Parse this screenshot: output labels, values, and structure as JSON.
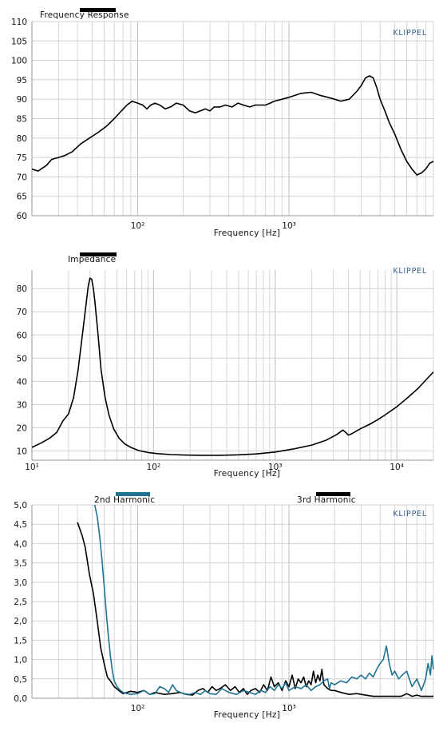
{
  "brand": "KLIPPEL",
  "brand_color": "#2f5f8f",
  "chart_data": [
    {
      "type": "line",
      "title": "Frequency Response",
      "xlabel": "Frequency  [Hz]",
      "x_scale": "log",
      "xlim": [
        20,
        9000
      ],
      "ylim": [
        60,
        110
      ],
      "y_ticks": [
        60,
        65,
        70,
        75,
        80,
        85,
        90,
        95,
        100,
        105,
        110
      ],
      "x_tick_labels": [
        {
          "value": 100,
          "label": "10²"
        },
        {
          "value": 1000,
          "label": "10³"
        }
      ],
      "grid": true,
      "legend": [
        {
          "name": "Frequency Response",
          "color": "#000000"
        }
      ],
      "series": [
        {
          "name": "Frequency Response",
          "color": "#000000",
          "x": [
            20,
            22,
            25,
            27,
            30,
            33,
            37,
            42,
            48,
            55,
            62,
            70,
            78,
            85,
            92,
            100,
            108,
            115,
            122,
            130,
            140,
            152,
            165,
            180,
            200,
            220,
            240,
            260,
            280,
            300,
            320,
            350,
            380,
            420,
            460,
            500,
            550,
            600,
            650,
            700,
            750,
            800,
            900,
            1000,
            1100,
            1200,
            1400,
            1600,
            1800,
            2000,
            2200,
            2500,
            2800,
            3000,
            3200,
            3400,
            3600,
            3800,
            4000,
            4300,
            4600,
            5000,
            5500,
            6000,
            6500,
            7000,
            7500,
            8000,
            8500,
            9000
          ],
          "y": [
            72,
            71.5,
            73,
            74.5,
            75,
            75.5,
            76.5,
            78.5,
            80,
            81.5,
            83,
            85,
            87,
            88.5,
            89.5,
            89,
            88.5,
            87.5,
            88.5,
            89,
            88.5,
            87.5,
            88,
            89,
            88.5,
            87,
            86.5,
            87,
            87.5,
            87,
            88,
            88,
            88.5,
            88,
            89,
            88.5,
            88,
            88.5,
            88.5,
            88.5,
            89,
            89.5,
            90,
            90.5,
            91,
            91.5,
            91.8,
            91,
            90.5,
            90,
            89.5,
            90,
            92,
            93.5,
            95.5,
            96,
            95.5,
            93,
            90,
            87,
            84,
            81,
            77,
            74,
            72,
            70.5,
            71,
            72,
            73.5,
            74
          ]
        }
      ]
    },
    {
      "type": "line",
      "title": "Impedance",
      "xlabel": "Frequency  [Hz]",
      "x_scale": "log",
      "xlim": [
        10,
        20000
      ],
      "ylim": [
        6,
        88
      ],
      "y_ticks": [
        10,
        20,
        30,
        40,
        50,
        60,
        70,
        80
      ],
      "x_tick_labels": [
        {
          "value": 10,
          "label": "10¹"
        },
        {
          "value": 100,
          "label": "10²"
        },
        {
          "value": 1000,
          "label": "10³"
        },
        {
          "value": 10000,
          "label": "10⁴"
        }
      ],
      "grid": true,
      "legend": [
        {
          "name": "Impedance",
          "color": "#000000"
        }
      ],
      "series": [
        {
          "name": "Impedance",
          "color": "#000000",
          "x": [
            10,
            12,
            14,
            16,
            18,
            20,
            22,
            24,
            26,
            28,
            29,
            30,
            31,
            32,
            33,
            35,
            37,
            40,
            43,
            47,
            52,
            58,
            65,
            75,
            90,
            110,
            140,
            180,
            250,
            350,
            500,
            700,
            1000,
            1400,
            2000,
            2600,
            3200,
            3600,
            3800,
            4000,
            4300,
            5000,
            6000,
            7000,
            8000,
            10000,
            12000,
            15000,
            18000,
            20000
          ],
          "y": [
            11.5,
            13.5,
            15.5,
            18,
            23,
            26,
            33,
            45,
            60,
            74,
            81,
            84.5,
            84,
            80,
            74,
            60,
            45,
            33,
            25.5,
            19.5,
            15.5,
            13,
            11.5,
            10.2,
            9.3,
            8.8,
            8.4,
            8.2,
            8.1,
            8.1,
            8.3,
            8.7,
            9.5,
            10.8,
            12.5,
            14.5,
            17,
            19,
            18,
            16.8,
            17.5,
            19.5,
            21.5,
            23.5,
            25.5,
            29,
            32.5,
            37,
            41.5,
            44
          ]
        }
      ]
    },
    {
      "type": "line",
      "title": "",
      "xlabel": "Frequency  [Hz]",
      "x_scale": "log",
      "xlim": [
        20,
        9000
      ],
      "ylim": [
        0,
        5
      ],
      "y_ticks": [
        0,
        0.5,
        1,
        1.5,
        2,
        2.5,
        3,
        3.5,
        4,
        4.5,
        5
      ],
      "y_tick_labels": [
        "0,0",
        "0,5",
        "1,0",
        "1,5",
        "2,0",
        "2,5",
        "3,0",
        "3,5",
        "4,0",
        "4,5",
        "5,0"
      ],
      "x_tick_labels": [
        {
          "value": 100,
          "label": "10²"
        },
        {
          "value": 1000,
          "label": "10³"
        }
      ],
      "grid": true,
      "legend": [
        {
          "name": "2nd Harmonic",
          "color": "#1f7391"
        },
        {
          "name": "3rd Harmonic",
          "color": "#000000"
        }
      ],
      "series": [
        {
          "name": "3rd Harmonic",
          "color": "#000000",
          "x": [
            40,
            43,
            45,
            48,
            51,
            54,
            57,
            60,
            63,
            66,
            70,
            75,
            80,
            90,
            100,
            110,
            120,
            130,
            150,
            170,
            190,
            210,
            230,
            250,
            270,
            290,
            310,
            330,
            350,
            380,
            410,
            440,
            470,
            500,
            530,
            560,
            600,
            640,
            680,
            720,
            760,
            800,
            850,
            900,
            950,
            1000,
            1050,
            1100,
            1150,
            1200,
            1250,
            1300,
            1350,
            1400,
            1450,
            1500,
            1550,
            1600,
            1650,
            1700,
            1750,
            1800,
            1900,
            2000,
            2200,
            2500,
            2800,
            3200,
            3600,
            4000,
            4500,
            5000,
            5500,
            6000,
            6500,
            7000,
            7500,
            8000,
            8500,
            9000
          ],
          "y": [
            4.55,
            4.2,
            3.9,
            3.2,
            2.7,
            2.0,
            1.3,
            0.9,
            0.55,
            0.45,
            0.3,
            0.2,
            0.12,
            0.18,
            0.15,
            0.2,
            0.1,
            0.15,
            0.1,
            0.12,
            0.15,
            0.1,
            0.08,
            0.2,
            0.25,
            0.15,
            0.3,
            0.2,
            0.25,
            0.35,
            0.2,
            0.3,
            0.15,
            0.25,
            0.1,
            0.2,
            0.25,
            0.15,
            0.35,
            0.2,
            0.55,
            0.3,
            0.4,
            0.2,
            0.45,
            0.3,
            0.6,
            0.25,
            0.5,
            0.4,
            0.55,
            0.3,
            0.45,
            0.35,
            0.7,
            0.4,
            0.6,
            0.45,
            0.75,
            0.35,
            0.3,
            0.25,
            0.2,
            0.2,
            0.15,
            0.1,
            0.12,
            0.08,
            0.05,
            0.05,
            0.05,
            0.05,
            0.05,
            0.12,
            0.05,
            0.08,
            0.05,
            0.05,
            0.05,
            0.05
          ]
        },
        {
          "name": "2nd Harmonic",
          "color": "#1f7391",
          "x": [
            52,
            54,
            56,
            58,
            60,
            62,
            64,
            66,
            68,
            70,
            73,
            76,
            80,
            85,
            90,
            100,
            110,
            120,
            130,
            140,
            150,
            160,
            170,
            180,
            200,
            220,
            240,
            260,
            280,
            300,
            330,
            360,
            400,
            450,
            500,
            550,
            600,
            650,
            700,
            750,
            800,
            850,
            900,
            950,
            1000,
            1100,
            1200,
            1300,
            1400,
            1500,
            1600,
            1700,
            1800,
            1850,
            1900,
            2000,
            2200,
            2400,
            2600,
            2800,
            3000,
            3200,
            3400,
            3600,
            3800,
            4000,
            4200,
            4400,
            4600,
            4800,
            5000,
            5300,
            5600,
            6000,
            6500,
            7000,
            7500,
            8000,
            8300,
            8600,
            8800,
            9000
          ],
          "y": [
            5.0,
            4.7,
            4.2,
            3.6,
            2.9,
            2.2,
            1.6,
            1.1,
            0.7,
            0.45,
            0.3,
            0.22,
            0.15,
            0.12,
            0.1,
            0.12,
            0.2,
            0.1,
            0.12,
            0.3,
            0.25,
            0.15,
            0.35,
            0.2,
            0.12,
            0.1,
            0.15,
            0.1,
            0.2,
            0.12,
            0.1,
            0.25,
            0.15,
            0.1,
            0.2,
            0.15,
            0.1,
            0.2,
            0.15,
            0.3,
            0.2,
            0.35,
            0.25,
            0.4,
            0.2,
            0.3,
            0.25,
            0.35,
            0.2,
            0.3,
            0.35,
            0.45,
            0.5,
            0.25,
            0.4,
            0.35,
            0.45,
            0.4,
            0.55,
            0.5,
            0.6,
            0.5,
            0.65,
            0.55,
            0.75,
            0.9,
            1.0,
            1.35,
            0.9,
            0.6,
            0.7,
            0.5,
            0.6,
            0.7,
            0.3,
            0.5,
            0.2,
            0.5,
            0.9,
            0.6,
            1.1,
            0.75
          ]
        }
      ]
    }
  ]
}
